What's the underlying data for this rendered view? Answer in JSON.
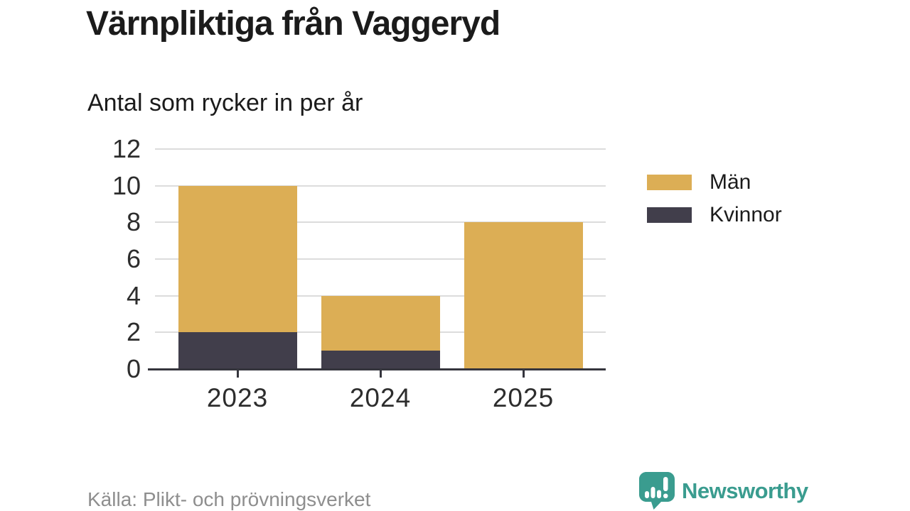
{
  "header": {
    "title": "Värnpliktiga från Vaggeryd",
    "subtitle": "Antal som rycker in per år"
  },
  "footer": {
    "source": "Källa: Plikt- och prövningsverket",
    "brand": {
      "name": "Newsworthy",
      "color": "#3A9C8F",
      "icon": "newsworthy-speech-bubble-bar-chart-icon"
    }
  },
  "colors": {
    "men": "#DCAE55",
    "women": "#413E4B",
    "grid": "#DCDCDC",
    "axis": "#35353D",
    "text": "#1B1B1B",
    "muted": "#8E8E8E"
  },
  "chart_data": {
    "type": "bar",
    "stacked": true,
    "title": "Värnpliktiga från Vaggeryd",
    "subtitle": "Antal som rycker in per år",
    "categories": [
      "2023",
      "2024",
      "2025"
    ],
    "series": [
      {
        "name": "Män",
        "color": "#DCAE55",
        "values": [
          8,
          3,
          8
        ]
      },
      {
        "name": "Kvinnor",
        "color": "#413E4B",
        "values": [
          2,
          1,
          0
        ]
      }
    ],
    "stack_order_bottom_to_top": [
      "Kvinnor",
      "Män"
    ],
    "totals": [
      10,
      4,
      8
    ],
    "ylim": [
      0,
      12
    ],
    "yticks": [
      0,
      2,
      4,
      6,
      8,
      10,
      12
    ],
    "xlabel": "",
    "ylabel": "",
    "grid": true,
    "legend_position": "right",
    "source": "Källa: Plikt- och prövningsverket"
  }
}
